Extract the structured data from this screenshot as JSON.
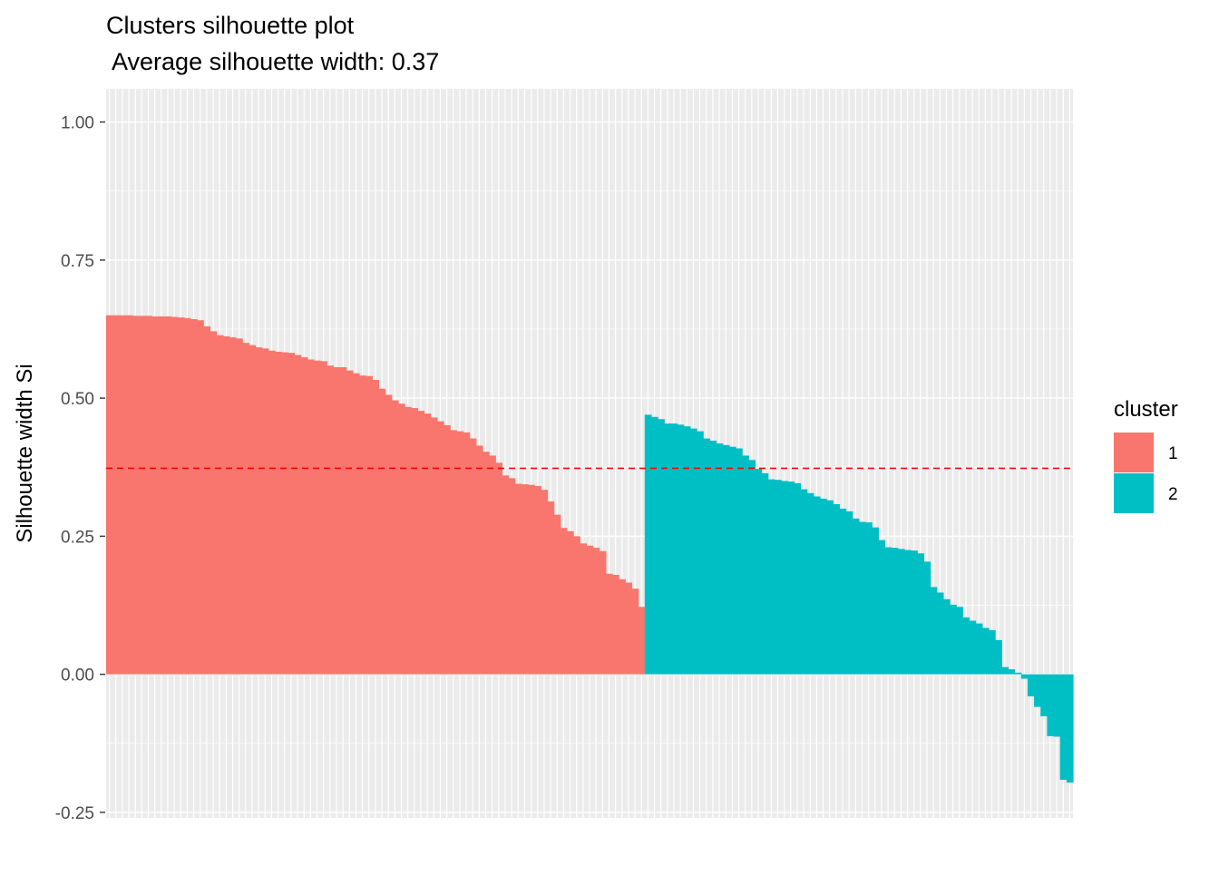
{
  "chart_data": {
    "type": "bar",
    "title": "Clusters silhouette plot",
    "subtitle": " Average silhouette width: 0.37",
    "xlabel": "",
    "ylabel": "Silhouette width Si",
    "ylim": [
      -0.26,
      1.06
    ],
    "yticks": [
      1.0,
      0.75,
      0.5,
      0.25,
      0.0,
      -0.25
    ],
    "ytick_labels": [
      "1.00",
      "0.75",
      "0.50",
      "0.25",
      "0.00",
      "-0.25"
    ],
    "grid": true,
    "legend": {
      "title": "cluster",
      "position": "right",
      "entries": [
        {
          "label": "1",
          "color": "#F8766D"
        },
        {
          "label": "2",
          "color": "#00BFC4"
        }
      ]
    },
    "reference_line": {
      "y": 0.373,
      "color": "#FF0000",
      "style": "dashed"
    },
    "series": [
      {
        "name": "1",
        "color": "#F8766D",
        "values": [
          0.65,
          0.65,
          0.65,
          0.65,
          0.649,
          0.649,
          0.649,
          0.648,
          0.648,
          0.648,
          0.647,
          0.646,
          0.645,
          0.643,
          0.641,
          0.63,
          0.621,
          0.614,
          0.612,
          0.61,
          0.608,
          0.6,
          0.596,
          0.592,
          0.59,
          0.586,
          0.584,
          0.583,
          0.582,
          0.578,
          0.574,
          0.57,
          0.568,
          0.567,
          0.559,
          0.556,
          0.556,
          0.55,
          0.545,
          0.541,
          0.54,
          0.533,
          0.517,
          0.506,
          0.496,
          0.49,
          0.484,
          0.482,
          0.477,
          0.472,
          0.465,
          0.458,
          0.451,
          0.442,
          0.44,
          0.438,
          0.427,
          0.414,
          0.403,
          0.396,
          0.383,
          0.36,
          0.355,
          0.345,
          0.344,
          0.343,
          0.341,
          0.334,
          0.313,
          0.289,
          0.265,
          0.259,
          0.25,
          0.237,
          0.233,
          0.229,
          0.223,
          0.182,
          0.18,
          0.172,
          0.166,
          0.155,
          0.122
        ]
      },
      {
        "name": "2",
        "color": "#00BFC4",
        "values": [
          0.47,
          0.466,
          0.462,
          0.454,
          0.454,
          0.452,
          0.449,
          0.445,
          0.44,
          0.427,
          0.423,
          0.418,
          0.415,
          0.412,
          0.409,
          0.396,
          0.388,
          0.372,
          0.364,
          0.353,
          0.352,
          0.35,
          0.349,
          0.346,
          0.335,
          0.328,
          0.322,
          0.318,
          0.315,
          0.308,
          0.3,
          0.295,
          0.282,
          0.276,
          0.275,
          0.266,
          0.243,
          0.23,
          0.229,
          0.227,
          0.225,
          0.224,
          0.219,
          0.204,
          0.158,
          0.148,
          0.136,
          0.126,
          0.122,
          0.103,
          0.097,
          0.092,
          0.084,
          0.08,
          0.062,
          0.013,
          0.009,
          0.003,
          -0.008,
          -0.04,
          -0.059,
          -0.076,
          -0.112,
          -0.113,
          -0.191,
          -0.196
        ]
      }
    ]
  }
}
